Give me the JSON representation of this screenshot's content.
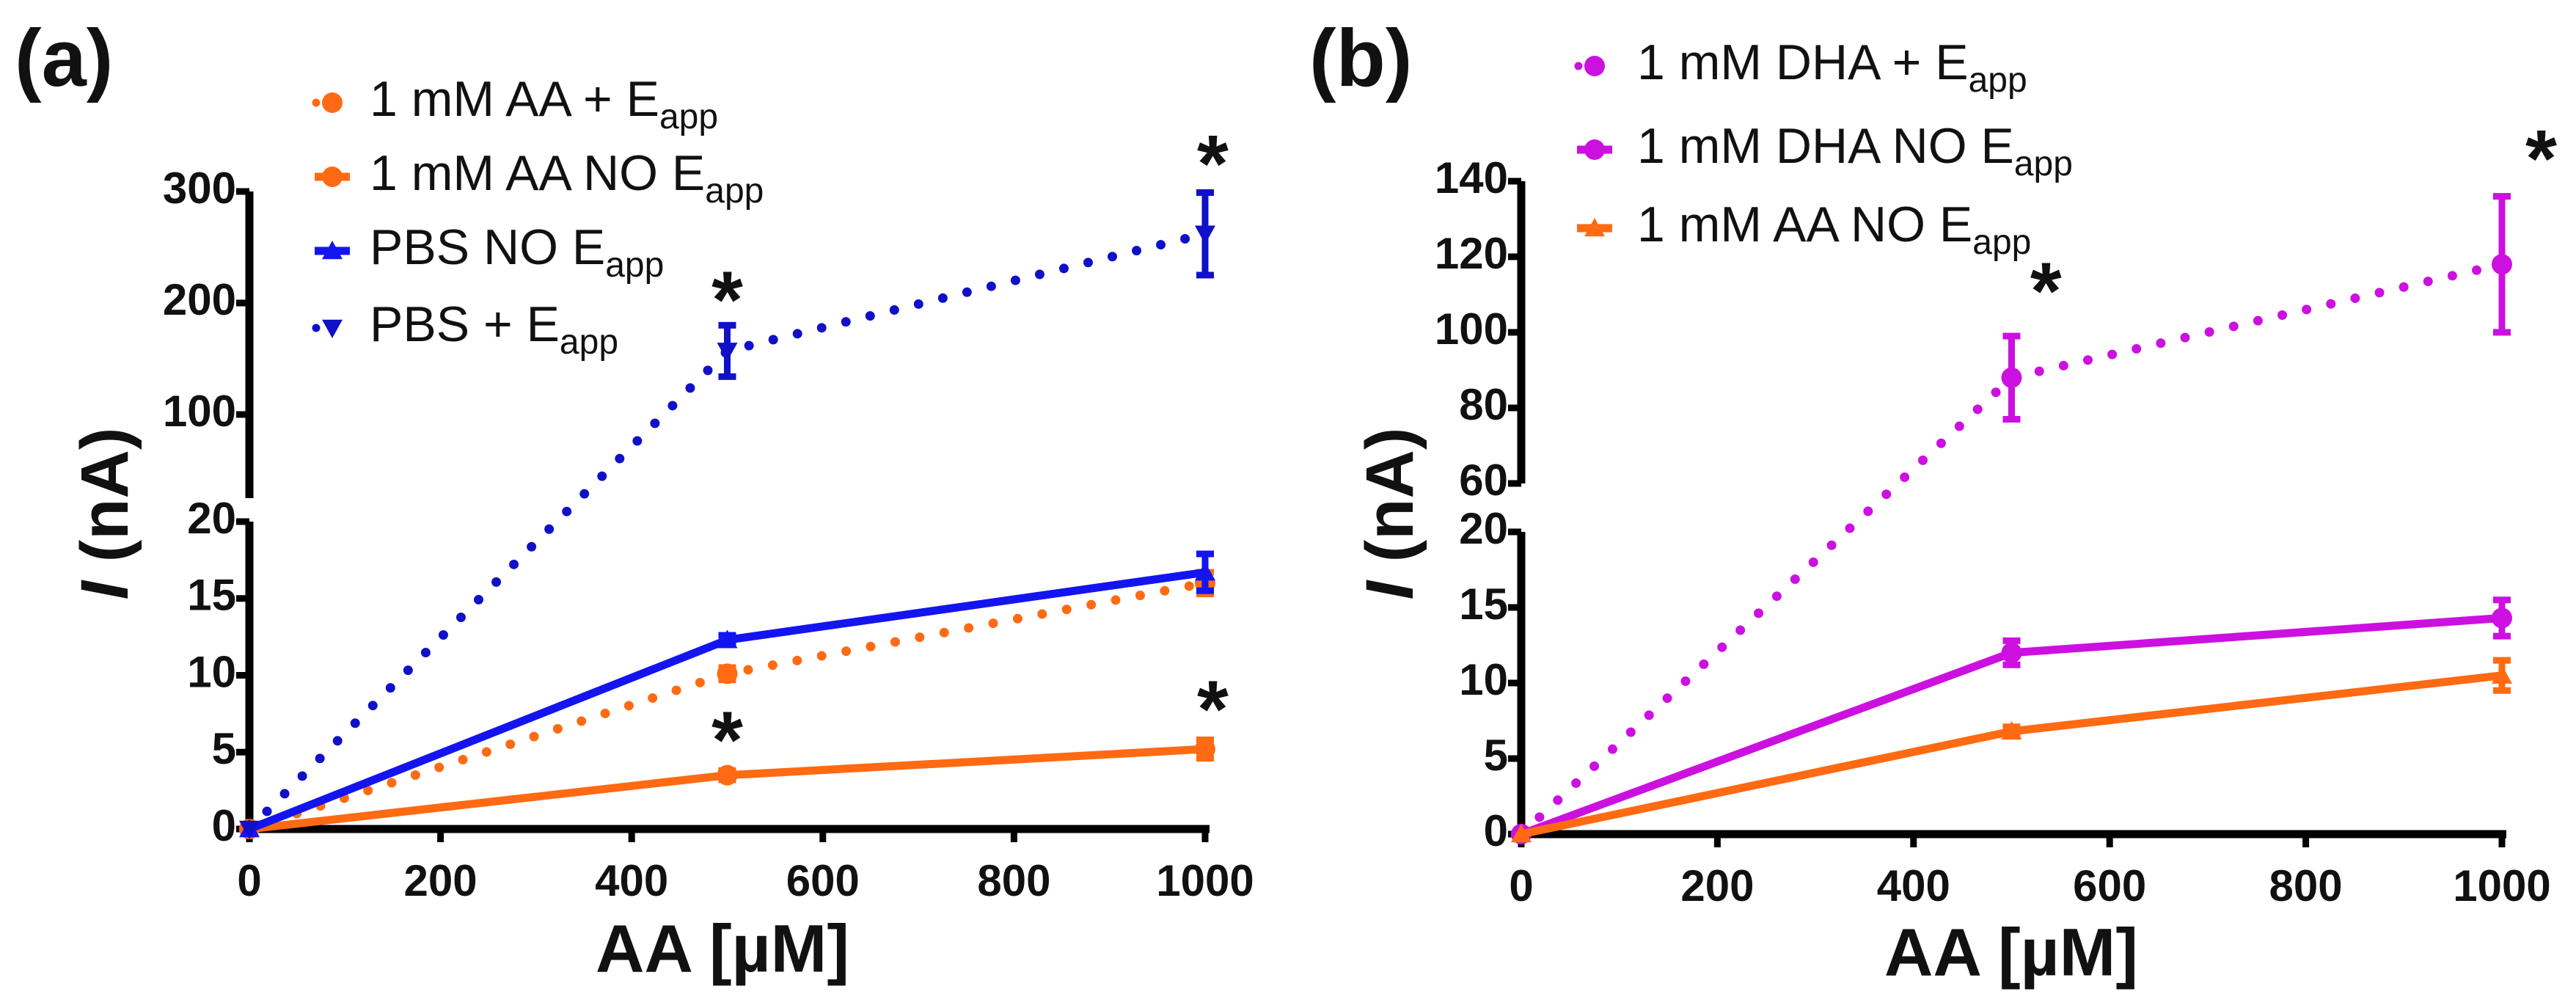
{
  "chart_data": [
    {
      "type": "line",
      "panel_label": "(a)",
      "xlabel": "AA [µM]",
      "ylabel_italic": "I",
      "ylabel_rest": " (nA)",
      "xlim": [
        0,
        1000
      ],
      "xticks": [
        0,
        200,
        400,
        600,
        800,
        1000
      ],
      "y_break": {
        "lower": [
          0,
          20
        ],
        "upper": [
          25,
          300
        ]
      },
      "yticks_lower": [
        0,
        5,
        10,
        15,
        20
      ],
      "yticks_upper": [
        100,
        200,
        300
      ],
      "legend_placement": "top-left",
      "series": [
        {
          "name": "1 mM AA + E",
          "sub": "app",
          "color": "#ff6a13",
          "style": "dotted",
          "marker": "circle",
          "x": [
            0,
            500,
            1000
          ],
          "y": [
            0,
            10.1,
            16.0
          ],
          "err": [
            0,
            0.4,
            0.7
          ]
        },
        {
          "name": "1 mM AA NO E",
          "sub": "app",
          "color": "#ff6a13",
          "style": "solid",
          "marker": "circle",
          "x": [
            0,
            500,
            1000
          ],
          "y": [
            0,
            3.5,
            5.2
          ],
          "err": [
            0,
            0.3,
            0.6
          ]
        },
        {
          "name": "PBS NO E",
          "sub": "app",
          "color": "#1414f0",
          "style": "solid",
          "marker": "triangle-up",
          "x": [
            0,
            500,
            1000
          ],
          "y": [
            0,
            12.3,
            16.7
          ],
          "err": [
            0,
            0.3,
            1.2
          ]
        },
        {
          "name": "PBS + E",
          "sub": "app",
          "color": "#1010c8",
          "style": "dotted",
          "marker": "triangle-down",
          "x": [
            0,
            500,
            1000
          ],
          "y": [
            0,
            157,
            262
          ],
          "err": [
            0,
            23,
            37
          ]
        }
      ],
      "annotations": [
        {
          "text": "*",
          "x": 500,
          "y": 203
        },
        {
          "text": "*",
          "x": 1008,
          "y": 325
        },
        {
          "text": "*",
          "x": 500,
          "y": 5.8
        },
        {
          "text": "*",
          "x": 1008,
          "y": 7.8
        }
      ]
    },
    {
      "type": "line",
      "panel_label": "(b)",
      "xlabel": "AA [µM]",
      "ylabel_italic": "I",
      "ylabel_rest": " (nA)",
      "xlim": [
        0,
        1000
      ],
      "xticks": [
        0,
        200,
        400,
        600,
        800,
        1000
      ],
      "y_break": {
        "lower": [
          0,
          20
        ],
        "upper": [
          60,
          140
        ]
      },
      "yticks_lower": [
        0,
        5,
        10,
        15,
        20
      ],
      "yticks_upper": [
        60,
        80,
        100,
        120,
        140
      ],
      "legend_placement": "top-left",
      "series": [
        {
          "name": "1 mM DHA + E",
          "sub": "app",
          "color": "#cc10e0",
          "style": "dotted",
          "marker": "circle",
          "x": [
            0,
            500,
            1000
          ],
          "y": [
            0,
            88,
            118
          ],
          "err": [
            0,
            11,
            18
          ]
        },
        {
          "name": "1 mM DHA NO E",
          "sub": "app",
          "color": "#cc10e0",
          "style": "solid",
          "marker": "circle",
          "x": [
            0,
            500,
            1000
          ],
          "y": [
            0,
            12.0,
            14.3
          ],
          "err": [
            0,
            0.8,
            1.2
          ]
        },
        {
          "name": "1 mM AA NO E",
          "sub": "app",
          "color": "#ff6a13",
          "style": "solid",
          "marker": "triangle-up",
          "x": [
            0,
            500,
            1000
          ],
          "y": [
            0,
            6.8,
            10.5
          ],
          "err": [
            0,
            0.3,
            1.0
          ]
        }
      ],
      "annotations": [
        {
          "text": "*",
          "x": 535,
          "y": 111
        },
        {
          "text": "*",
          "x": 1040,
          "y": 146
        }
      ]
    }
  ]
}
